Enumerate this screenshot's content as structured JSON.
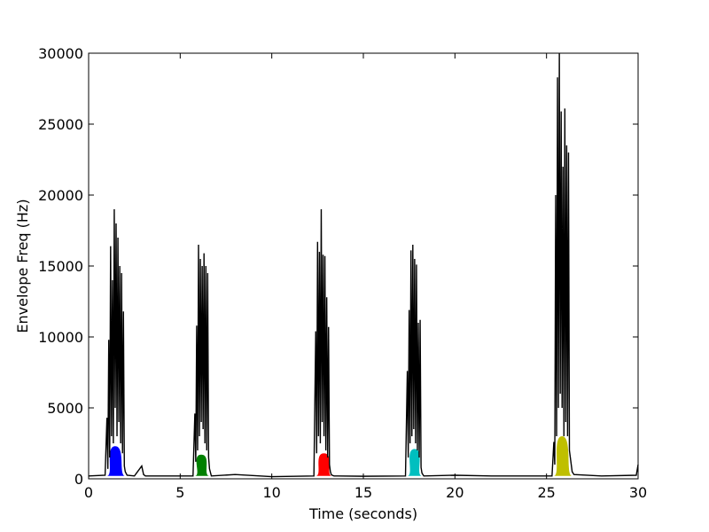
{
  "chart_data": {
    "type": "line",
    "title": "",
    "xlabel": "Time (seconds)",
    "ylabel": "Envelope Freq (Hz)",
    "xlim": [
      0,
      30
    ],
    "ylim": [
      0,
      30000
    ],
    "x_ticks": [
      0,
      5,
      10,
      15,
      20,
      25,
      30
    ],
    "y_ticks": [
      0,
      5000,
      10000,
      15000,
      20000,
      25000,
      30000
    ],
    "x_tick_labels": [
      "0",
      "5",
      "10",
      "15",
      "20",
      "25",
      "30"
    ],
    "y_tick_labels": [
      "0",
      "5000",
      "10000",
      "15000",
      "20000",
      "25000",
      "30000"
    ],
    "grid": false,
    "legend": "none",
    "baseline_hz": 200,
    "bursts": [
      {
        "start": 1.0,
        "end": 2.0,
        "peak_time": 1.45,
        "peak_hz": 19000,
        "fill_hz": 2300,
        "color": "#0000ff"
      },
      {
        "start": 5.8,
        "end": 6.6,
        "peak_time": 6.15,
        "peak_hz": 16500,
        "fill_hz": 1700,
        "color": "#008000"
      },
      {
        "start": 12.4,
        "end": 13.3,
        "peak_time": 12.85,
        "peak_hz": 19000,
        "fill_hz": 1800,
        "color": "#ff0000"
      },
      {
        "start": 17.4,
        "end": 18.2,
        "peak_time": 17.8,
        "peak_hz": 16500,
        "fill_hz": 2100,
        "color": "#00bfbf"
      },
      {
        "start": 25.4,
        "end": 26.4,
        "peak_time": 25.85,
        "peak_hz": 30000,
        "fill_hz": 3000,
        "color": "#bfbf00"
      }
    ],
    "series": [
      {
        "color": "#000000",
        "x": [
          0.0,
          0.9,
          1.0,
          1.05,
          1.1,
          1.15,
          1.2,
          1.25,
          1.3,
          1.35,
          1.4,
          1.45,
          1.5,
          1.55,
          1.6,
          1.65,
          1.7,
          1.75,
          1.8,
          1.85,
          1.9,
          1.95,
          2.0,
          2.1,
          2.5,
          2.9,
          3.0,
          3.1,
          5.7,
          5.8,
          5.85,
          5.9,
          5.95,
          6.0,
          6.05,
          6.1,
          6.15,
          6.2,
          6.25,
          6.3,
          6.35,
          6.4,
          6.45,
          6.5,
          6.55,
          6.6,
          6.7,
          8.0,
          10.0,
          12.3,
          12.4,
          12.45,
          12.5,
          12.55,
          12.6,
          12.65,
          12.7,
          12.75,
          12.8,
          12.85,
          12.9,
          12.95,
          13.0,
          13.05,
          13.1,
          13.15,
          13.2,
          13.25,
          13.3,
          13.4,
          15.0,
          17.3,
          17.4,
          17.45,
          17.5,
          17.55,
          17.6,
          17.65,
          17.7,
          17.75,
          17.8,
          17.85,
          17.9,
          17.95,
          18.0,
          18.05,
          18.1,
          18.15,
          18.2,
          18.3,
          20.0,
          22.0,
          25.3,
          25.4,
          25.45,
          25.5,
          25.55,
          25.6,
          25.65,
          25.7,
          25.75,
          25.8,
          25.85,
          25.9,
          25.95,
          26.0,
          26.05,
          26.1,
          26.15,
          26.2,
          26.25,
          26.3,
          26.4,
          26.5,
          28.0,
          29.9,
          30.0
        ],
        "y": [
          200,
          250,
          4300,
          700,
          9800,
          1500,
          16400,
          3000,
          14000,
          2500,
          19000,
          5000,
          18000,
          3000,
          17000,
          4000,
          15000,
          2500,
          14500,
          1800,
          11800,
          900,
          500,
          250,
          200,
          900,
          300,
          200,
          200,
          4600,
          1200,
          10800,
          2000,
          16500,
          3000,
          15500,
          4000,
          15000,
          3500,
          15900,
          2500,
          15000,
          2000,
          14500,
          1500,
          700,
          200,
          300,
          150,
          200,
          10400,
          1800,
          16700,
          3000,
          16000,
          2500,
          19000,
          4000,
          15800,
          3000,
          15700,
          2000,
          12800,
          1500,
          10700,
          1000,
          500,
          300,
          250,
          200,
          180,
          200,
          7600,
          1500,
          11900,
          2500,
          16100,
          3000,
          16500,
          3500,
          15500,
          2500,
          15100,
          2000,
          11000,
          1500,
          11200,
          800,
          400,
          200,
          250,
          200,
          200,
          2600,
          1000,
          20000,
          3000,
          28300,
          5000,
          30000,
          6000,
          25900,
          5000,
          22000,
          3000,
          26100,
          4000,
          23500,
          3000,
          23000,
          2000,
          1500,
          500,
          300,
          200,
          250,
          1000
        ]
      }
    ]
  }
}
